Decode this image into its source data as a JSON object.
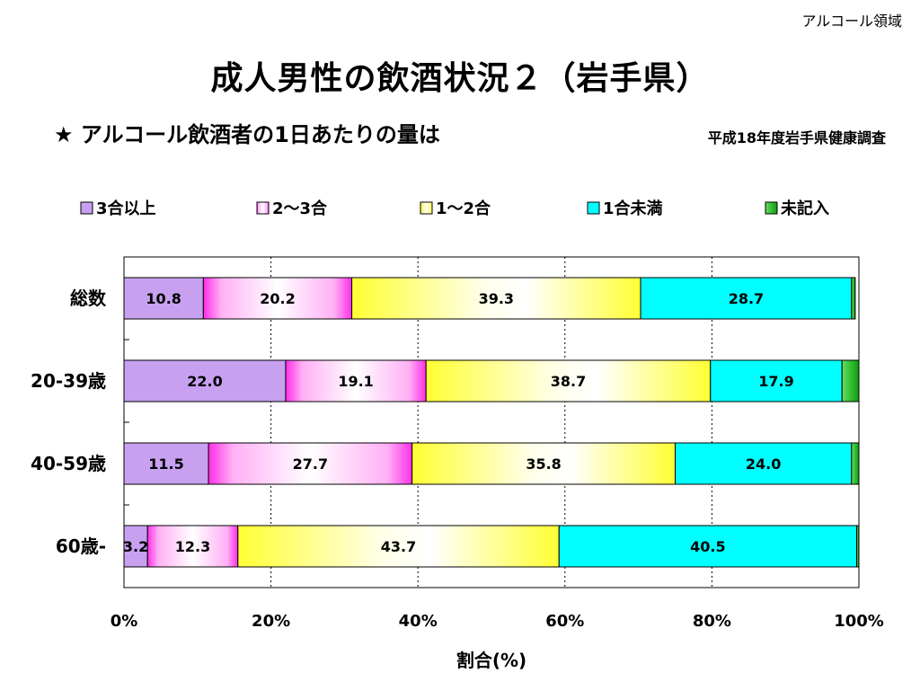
{
  "header": {
    "corner_label": "アルコール領域",
    "title": "成人男性の飲酒状況２（岩手県）",
    "subtitle": "★ アルコール飲酒者の1日あたりの量は",
    "source": "平成18年度岩手県健康調査"
  },
  "chart_data": {
    "type": "bar",
    "orientation": "horizontal",
    "stacked": true,
    "percent_stacked": true,
    "categories": [
      "総数",
      "20-39歳",
      "40-59歳",
      "60歳-"
    ],
    "series": [
      {
        "name": "3合以上",
        "color": "#c8a0f0",
        "values": [
          10.8,
          22.0,
          11.5,
          3.2
        ],
        "labels": [
          "10.8",
          "22.0",
          "11.5",
          "3.2"
        ]
      },
      {
        "name": "2～3合",
        "color": "#ff2ee8",
        "values": [
          20.2,
          19.1,
          27.7,
          12.3
        ],
        "labels": [
          "20.2",
          "19.1",
          "27.7",
          "12.3"
        ]
      },
      {
        "name": "1～2合",
        "color": "#ffff33",
        "values": [
          39.3,
          38.7,
          35.8,
          43.7
        ],
        "labels": [
          "39.3",
          "38.7",
          "35.8",
          "43.7"
        ]
      },
      {
        "name": "1合未満",
        "color": "#00ffff",
        "values": [
          28.7,
          17.9,
          24.0,
          40.5
        ],
        "labels": [
          "28.7",
          "17.9",
          "24.0",
          "40.5"
        ]
      },
      {
        "name": "未記入",
        "color": "#33c033",
        "values": [
          0.5,
          2.3,
          1.0,
          0.3
        ],
        "labels": []
      }
    ],
    "x_ticks": [
      "0%",
      "20%",
      "40%",
      "60%",
      "80%",
      "100%"
    ],
    "xlabel": "割合(%)",
    "xlim": [
      0,
      100
    ],
    "grid": "vertical dotted",
    "legend_position": "top"
  }
}
